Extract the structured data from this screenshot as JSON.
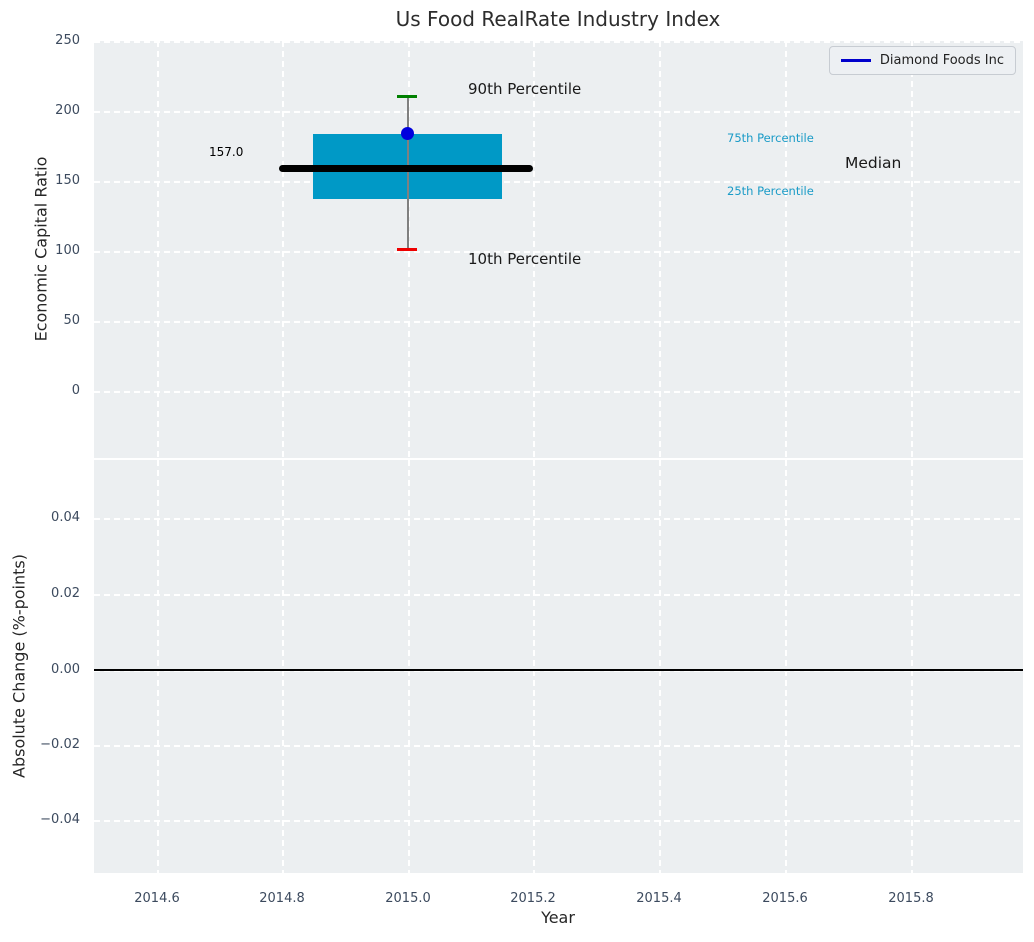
{
  "figure": {
    "title": "Us Food RealRate Industry Index"
  },
  "colors": {
    "figure_bg": "#ffffff",
    "axes_bg": "#eceff1",
    "grid": "#ffffff",
    "tick_label": "#3c4a5e",
    "box_fill": "#0099c6",
    "median_line": "#000000",
    "whisker": "#808080",
    "p90_cap": "#008000",
    "p10_cap": "#ee0000",
    "company_point": "#0000dd",
    "legend_line": "#0000cc",
    "percentile_text": "#1a9bc7"
  },
  "chart_data": [
    {
      "type": "box",
      "title": "Us Food RealRate Industry Index",
      "xlabel": "",
      "ylabel": "Economic Capital Ratio",
      "yticks": [
        "250",
        "200",
        "150",
        "100",
        "50",
        "0"
      ],
      "ylim": [
        -48,
        250
      ],
      "xlim": [
        2014.5,
        2016.0
      ],
      "grid": "white dashed on light gray, both axes",
      "legend": {
        "position": "upper right",
        "entries": [
          {
            "label": "Diamond Foods Inc",
            "color": "#0000cc",
            "marker": "line"
          }
        ]
      },
      "boxplot": {
        "x": 2015.0,
        "p90": 209,
        "p75": 182,
        "median": 157.0,
        "p25": 136,
        "p10": 99,
        "median_label": "157.0"
      },
      "company_point": {
        "name": "Diamond Foods Inc",
        "x": 2015.0,
        "value": 183
      },
      "annotations": [
        {
          "text": "90th Percentile",
          "anchor_value": 209,
          "color": "#1a1a1a"
        },
        {
          "text": "10th Percentile",
          "anchor_value": 99,
          "color": "#1a1a1a"
        },
        {
          "text": "75th Percentile",
          "anchor_value": 182,
          "color": "#1a9bc7"
        },
        {
          "text": "25th Percentile",
          "anchor_value": 136,
          "color": "#1a9bc7"
        },
        {
          "text": "Median",
          "anchor_value": 157,
          "color": "#1a1a1a"
        },
        {
          "text": "157.0",
          "anchor_value": 157,
          "color": "#000000"
        }
      ]
    },
    {
      "type": "line",
      "xlabel": "Year",
      "ylabel": "Absolute Change (%-points)",
      "yticks": [
        "0.04",
        "0.02",
        "0.00",
        "−0.02",
        "−0.04"
      ],
      "xticks": [
        "2014.6",
        "2014.8",
        "2015.0",
        "2015.2",
        "2015.4",
        "2015.6",
        "2015.8"
      ],
      "ylim": [
        -0.054,
        0.056
      ],
      "xlim": [
        2014.5,
        2016.0
      ],
      "series": [],
      "zero_line": 0.0
    }
  ]
}
